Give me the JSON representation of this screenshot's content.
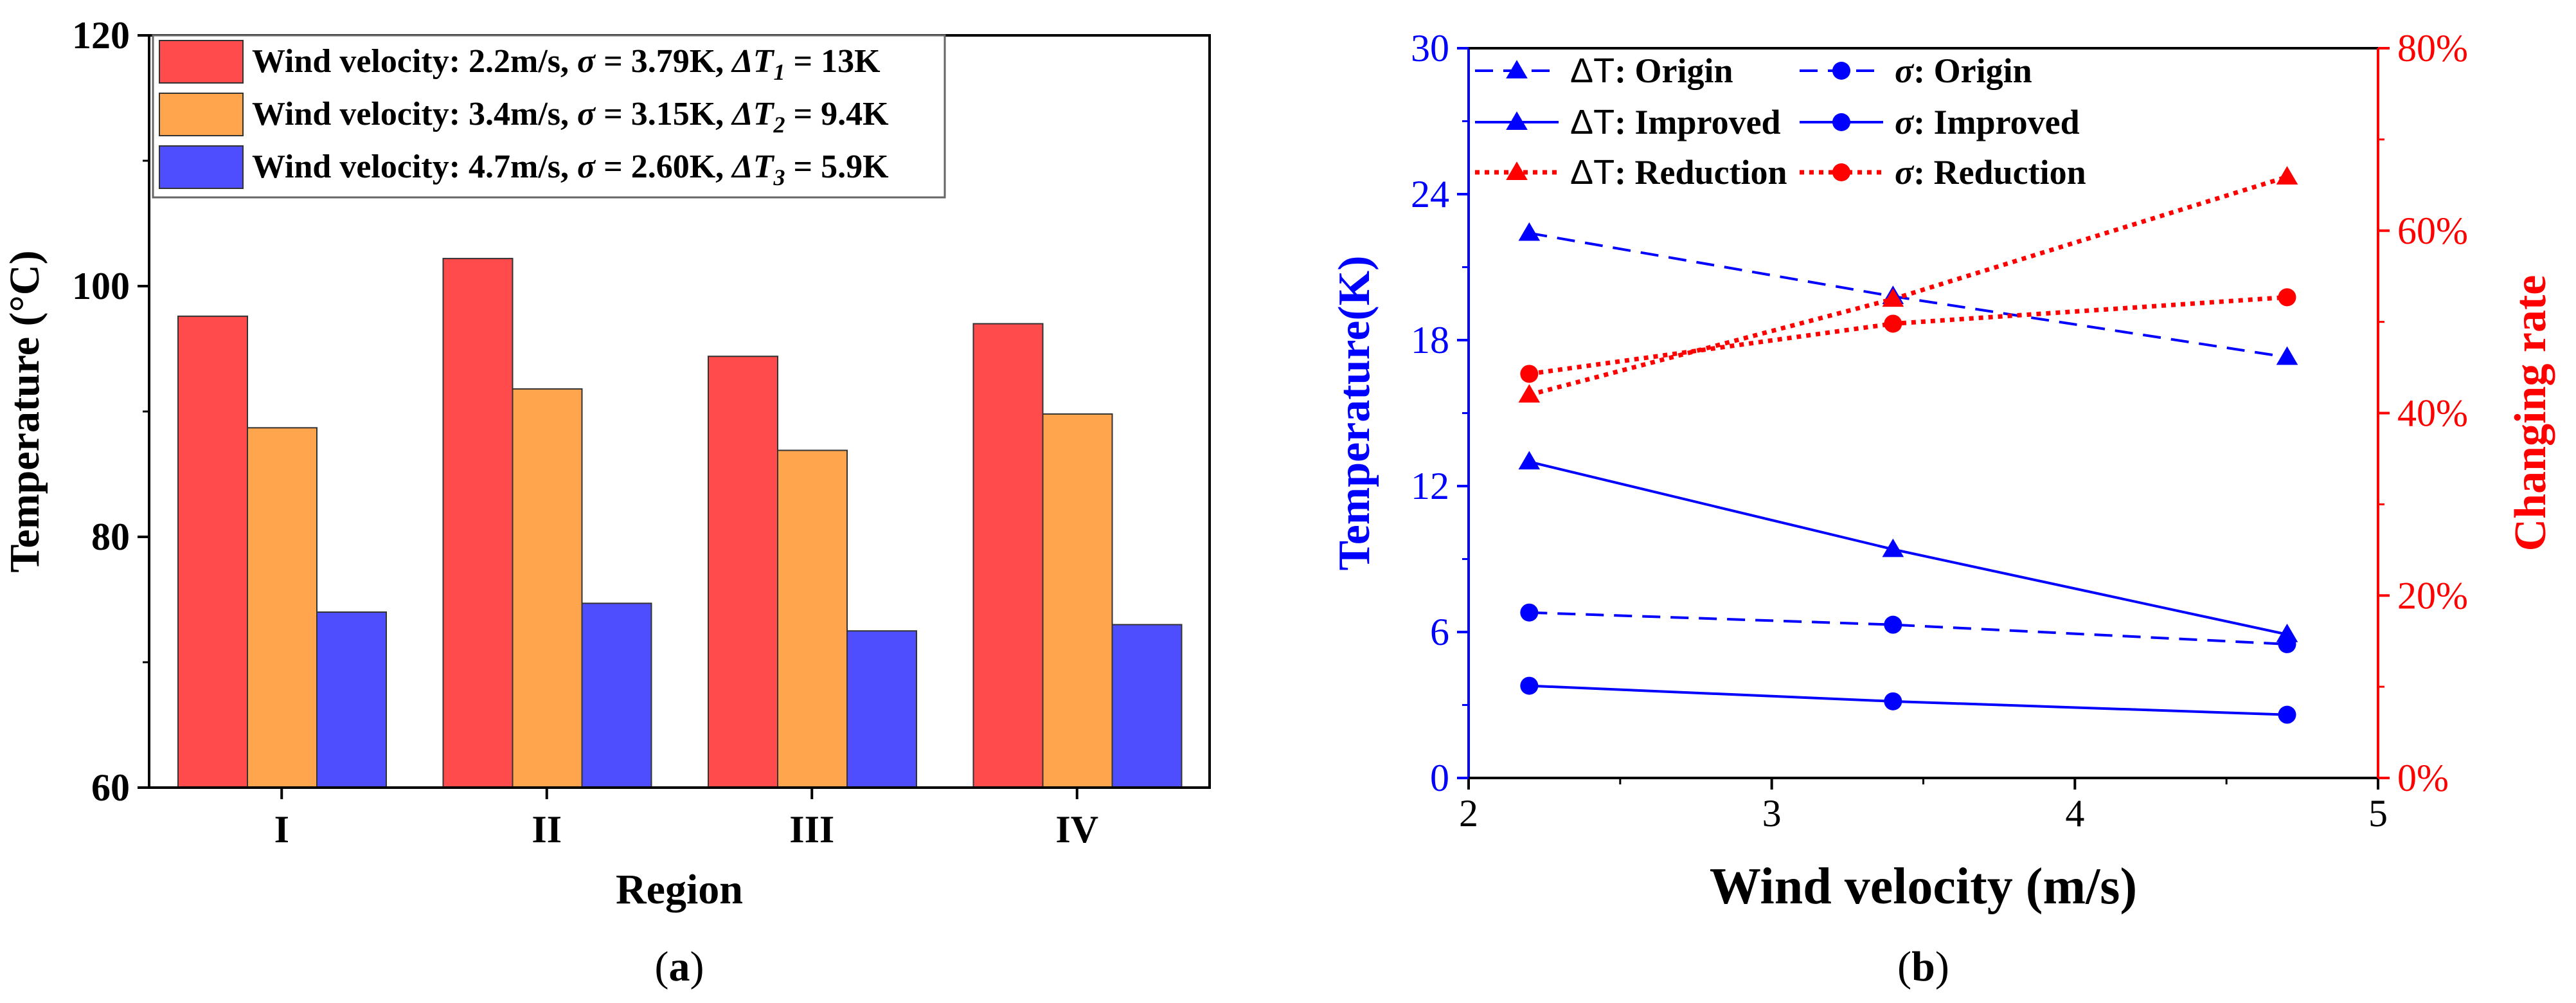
{
  "chart_data": [
    {
      "id": "a",
      "type": "bar",
      "panel_label": "(a)",
      "panel_letter": "a",
      "xlabel": "Region",
      "ylabel": "Temperature (°C)",
      "ylim": [
        60,
        120
      ],
      "yticks": [
        60,
        80,
        100,
        120
      ],
      "categories": [
        "I",
        "II",
        "III",
        "IV"
      ],
      "legend_position": "top-left",
      "series": [
        {
          "name": "Wind velocity: 2.2m/s, σ = 3.79K, ΔT1 = 13K",
          "label_main": "Wind velocity: 2.2m/s, ",
          "sigma_sym": "σ",
          "sigma_val": " = 3.79K, ",
          "delta_sym": "ΔT",
          "delta_sub": "1",
          "delta_val": " = 13K",
          "color": "#ff4b4b",
          "values": [
            97.6,
            102.2,
            94.4,
            97.0
          ]
        },
        {
          "name": "Wind velocity: 3.4m/s, σ = 3.15K, ΔT2 = 9.4K",
          "label_main": "Wind velocity: 3.4m/s, ",
          "sigma_sym": "σ",
          "sigma_val": " = 3.15K, ",
          "delta_sym": "ΔT",
          "delta_sub": "2",
          "delta_val": " = 9.4K",
          "color": "#ffa54e",
          "values": [
            88.7,
            91.8,
            86.9,
            89.8
          ]
        },
        {
          "name": "Wind velocity: 4.7m/s, σ = 2.60K, ΔT3 = 5.9K",
          "label_main": "Wind velocity: 4.7m/s, ",
          "sigma_sym": "σ",
          "sigma_val": " = 2.60K, ",
          "delta_sym": "ΔT",
          "delta_sub": "3",
          "delta_val": " = 5.9K",
          "color": "#4e4eff",
          "values": [
            74.0,
            74.7,
            72.5,
            73.0
          ]
        }
      ]
    },
    {
      "id": "b",
      "type": "line",
      "panel_label": "(b)",
      "panel_letter": "b",
      "xlabel": "Wind velocity (m/s)",
      "ylabel_left": "Temperature(K)",
      "ylabel_right": "Changing rate",
      "xlim": [
        2,
        5
      ],
      "xticks": [
        2,
        3,
        4,
        5
      ],
      "ylim_left": [
        0,
        30
      ],
      "yticks_left": [
        0,
        6,
        12,
        18,
        24,
        30
      ],
      "ylim_right": [
        0,
        80
      ],
      "yticks_right": [
        "0%",
        "20%",
        "40%",
        "60%",
        "80%"
      ],
      "yticks_right_values": [
        0,
        20,
        40,
        60,
        80
      ],
      "left_color": "#0000ff",
      "right_color": "#ff0000",
      "x": [
        2.2,
        3.4,
        4.7
      ],
      "legend_position": "top",
      "series": [
        {
          "name": "ΔT: Origin",
          "prefix": "ΔT",
          "suffix": ": Origin",
          "axis": "left",
          "marker": "triangle",
          "dash": "dashed",
          "color": "#0000ff",
          "values": [
            22.4,
            19.8,
            17.3
          ]
        },
        {
          "name": "σ: Origin",
          "prefix": "σ",
          "suffix": ": Origin",
          "axis": "left",
          "marker": "circle",
          "dash": "dashed",
          "color": "#0000ff",
          "values": [
            6.8,
            6.3,
            5.5
          ]
        },
        {
          "name": "ΔT: Improved",
          "prefix": "ΔT",
          "suffix": ": Improved",
          "axis": "left",
          "marker": "triangle",
          "dash": "solid",
          "color": "#0000ff",
          "values": [
            13.0,
            9.4,
            5.9
          ]
        },
        {
          "name": "σ: Improved",
          "prefix": "σ",
          "suffix": ": Improved",
          "axis": "left",
          "marker": "circle",
          "dash": "solid",
          "color": "#0000ff",
          "values": [
            3.79,
            3.15,
            2.6
          ]
        },
        {
          "name": "ΔT: Reduction",
          "prefix": "ΔT",
          "suffix": ": Reduction",
          "axis": "right",
          "marker": "triangle",
          "dash": "dotted",
          "color": "#ff0000",
          "values": [
            42,
            52.5,
            65.9
          ]
        },
        {
          "name": "σ: Reduction",
          "prefix": "σ",
          "suffix": ": Reduction",
          "axis": "right",
          "marker": "circle",
          "dash": "dotted",
          "color": "#ff0000",
          "values": [
            44.3,
            49.8,
            52.7
          ]
        }
      ]
    }
  ]
}
